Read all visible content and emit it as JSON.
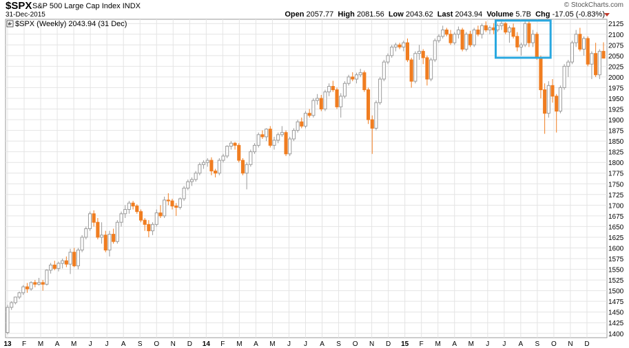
{
  "header": {
    "symbol": "$SPX",
    "name": "S&P 500 Large Cap Index",
    "exchange": "INDX",
    "date": "31-Dec-2015",
    "brand": "© StockCharts.com",
    "open_label": "Open",
    "open": "2057.77",
    "high_label": "High",
    "high": "2081.56",
    "low_label": "Low",
    "low": "2043.62",
    "last_label": "Last",
    "last": "2043.94",
    "volume_label": "Volume",
    "volume": "5.7B",
    "chg_label": "Chg",
    "chg": "-17.05 (-0.83%)"
  },
  "colors": {
    "up": "#9a9a9a",
    "down": "#f07d20",
    "highlight": "#29a8e0",
    "grid": "#e4e4e4"
  },
  "chart_data": {
    "type": "candlestick",
    "legend": "$SPX (Weekly) 2043.94 (31 Dec)",
    "ylim": [
      1390,
      2135
    ],
    "yticks": [
      1400,
      1425,
      1450,
      1475,
      1500,
      1525,
      1550,
      1575,
      1600,
      1625,
      1650,
      1675,
      1700,
      1725,
      1750,
      1775,
      1800,
      1825,
      1850,
      1875,
      1900,
      1925,
      1950,
      1975,
      2000,
      2025,
      2050,
      2075,
      2100,
      2125
    ],
    "x_labels": [
      "13",
      "F",
      "M",
      "A",
      "M",
      "J",
      "J",
      "A",
      "S",
      "O",
      "N",
      "D",
      "14",
      "F",
      "M",
      "A",
      "M",
      "J",
      "J",
      "A",
      "S",
      "O",
      "N",
      "D",
      "15",
      "F",
      "M",
      "A",
      "M",
      "J",
      "J",
      "A",
      "S",
      "O",
      "N",
      "D"
    ],
    "highlight_box": {
      "x_start": 125,
      "x_end": 138,
      "y_low": 2045,
      "y_high": 2132
    },
    "ohlc": [
      [
        1402,
        1467,
        1398,
        1461
      ],
      [
        1461,
        1475,
        1455,
        1472
      ],
      [
        1472,
        1486,
        1468,
        1485
      ],
      [
        1485,
        1498,
        1480,
        1495
      ],
      [
        1495,
        1513,
        1490,
        1509
      ],
      [
        1509,
        1518,
        1495,
        1504
      ],
      [
        1504,
        1522,
        1500,
        1519
      ],
      [
        1519,
        1525,
        1508,
        1515
      ],
      [
        1515,
        1530,
        1512,
        1519
      ],
      [
        1519,
        1525,
        1500,
        1515
      ],
      [
        1515,
        1550,
        1512,
        1548
      ],
      [
        1548,
        1565,
        1540,
        1560
      ],
      [
        1560,
        1570,
        1548,
        1552
      ],
      [
        1552,
        1568,
        1545,
        1564
      ],
      [
        1564,
        1575,
        1552,
        1570
      ],
      [
        1570,
        1580,
        1555,
        1562
      ],
      [
        1562,
        1598,
        1539,
        1590
      ],
      [
        1590,
        1600,
        1555,
        1558
      ],
      [
        1558,
        1600,
        1550,
        1595
      ],
      [
        1595,
        1630,
        1590,
        1625
      ],
      [
        1625,
        1650,
        1620,
        1645
      ],
      [
        1645,
        1685,
        1640,
        1680
      ],
      [
        1680,
        1688,
        1650,
        1660
      ],
      [
        1660,
        1670,
        1620,
        1625
      ],
      [
        1625,
        1660,
        1610,
        1630
      ],
      [
        1630,
        1640,
        1590,
        1595
      ],
      [
        1595,
        1640,
        1580,
        1632
      ],
      [
        1632,
        1645,
        1610,
        1615
      ],
      [
        1615,
        1665,
        1610,
        1660
      ],
      [
        1660,
        1685,
        1650,
        1680
      ],
      [
        1680,
        1700,
        1670,
        1690
      ],
      [
        1690,
        1710,
        1680,
        1705
      ],
      [
        1705,
        1710,
        1690,
        1698
      ],
      [
        1698,
        1702,
        1680,
        1685
      ],
      [
        1685,
        1690,
        1660,
        1665
      ],
      [
        1665,
        1670,
        1640,
        1655
      ],
      [
        1655,
        1665,
        1625,
        1640
      ],
      [
        1640,
        1660,
        1630,
        1655
      ],
      [
        1655,
        1690,
        1650,
        1682
      ],
      [
        1682,
        1700,
        1670,
        1675
      ],
      [
        1675,
        1720,
        1670,
        1712
      ],
      [
        1712,
        1728,
        1700,
        1710
      ],
      [
        1710,
        1715,
        1690,
        1698
      ],
      [
        1698,
        1705,
        1675,
        1695
      ],
      [
        1695,
        1718,
        1690,
        1715
      ],
      [
        1715,
        1745,
        1710,
        1740
      ],
      [
        1740,
        1760,
        1735,
        1755
      ],
      [
        1755,
        1765,
        1745,
        1760
      ],
      [
        1760,
        1780,
        1755,
        1775
      ],
      [
        1775,
        1800,
        1770,
        1795
      ],
      [
        1795,
        1805,
        1785,
        1800
      ],
      [
        1800,
        1810,
        1790,
        1805
      ],
      [
        1805,
        1812,
        1770,
        1780
      ],
      [
        1780,
        1785,
        1765,
        1775
      ],
      [
        1775,
        1810,
        1770,
        1805
      ],
      [
        1805,
        1820,
        1800,
        1815
      ],
      [
        1815,
        1840,
        1810,
        1838
      ],
      [
        1838,
        1850,
        1830,
        1845
      ],
      [
        1845,
        1848,
        1830,
        1840
      ],
      [
        1840,
        1845,
        1800,
        1805
      ],
      [
        1805,
        1810,
        1770,
        1775
      ],
      [
        1775,
        1800,
        1737,
        1795
      ],
      [
        1795,
        1830,
        1790,
        1825
      ],
      [
        1825,
        1845,
        1820,
        1840
      ],
      [
        1840,
        1870,
        1835,
        1865
      ],
      [
        1865,
        1875,
        1855,
        1860
      ],
      [
        1860,
        1880,
        1850,
        1878
      ],
      [
        1878,
        1885,
        1835,
        1840
      ],
      [
        1840,
        1860,
        1830,
        1852
      ],
      [
        1852,
        1870,
        1845,
        1865
      ],
      [
        1865,
        1885,
        1860,
        1870
      ],
      [
        1870,
        1875,
        1815,
        1820
      ],
      [
        1820,
        1860,
        1815,
        1855
      ],
      [
        1855,
        1880,
        1850,
        1875
      ],
      [
        1875,
        1900,
        1870,
        1895
      ],
      [
        1895,
        1905,
        1880,
        1885
      ],
      [
        1885,
        1920,
        1880,
        1915
      ],
      [
        1915,
        1925,
        1905,
        1910
      ],
      [
        1910,
        1950,
        1905,
        1945
      ],
      [
        1945,
        1960,
        1935,
        1950
      ],
      [
        1950,
        1958,
        1920,
        1925
      ],
      [
        1925,
        1970,
        1920,
        1965
      ],
      [
        1965,
        1985,
        1955,
        1978
      ],
      [
        1978,
        1991,
        1965,
        1970
      ],
      [
        1970,
        1975,
        1925,
        1930
      ],
      [
        1930,
        1962,
        1905,
        1955
      ],
      [
        1955,
        1990,
        1950,
        1985
      ],
      [
        1985,
        2005,
        1980,
        2000
      ],
      [
        2000,
        2011,
        1990,
        1995
      ],
      [
        1995,
        2010,
        1985,
        2005
      ],
      [
        2005,
        2019,
        2000,
        2010
      ],
      [
        2010,
        2015,
        1965,
        1970
      ],
      [
        1970,
        1975,
        1890,
        1900
      ],
      [
        1900,
        1910,
        1820,
        1880
      ],
      [
        1880,
        1945,
        1875,
        1940
      ],
      [
        1940,
        2000,
        1935,
        1995
      ],
      [
        1995,
        2040,
        1990,
        2035
      ],
      [
        2035,
        2055,
        2030,
        2050
      ],
      [
        2050,
        2075,
        2045,
        2070
      ],
      [
        2070,
        2080,
        2060,
        2075
      ],
      [
        2075,
        2080,
        2065,
        2070
      ],
      [
        2070,
        2085,
        2060,
        2080
      ],
      [
        2080,
        2090,
        2035,
        2040
      ],
      [
        2040,
        2045,
        1975,
        1990
      ],
      [
        1990,
        2060,
        1985,
        2055
      ],
      [
        2055,
        2075,
        2040,
        2060
      ],
      [
        2060,
        2065,
        2030,
        2045
      ],
      [
        2045,
        2050,
        1980,
        1995
      ],
      [
        1995,
        2045,
        1990,
        2040
      ],
      [
        2040,
        2090,
        2035,
        2085
      ],
      [
        2085,
        2100,
        2080,
        2095
      ],
      [
        2095,
        2120,
        2090,
        2110
      ],
      [
        2110,
        2115,
        2095,
        2100
      ],
      [
        2100,
        2110,
        2075,
        2080
      ],
      [
        2080,
        2105,
        2075,
        2100
      ],
      [
        2100,
        2118,
        2090,
        2110
      ],
      [
        2110,
        2115,
        2060,
        2065
      ],
      [
        2065,
        2105,
        2060,
        2100
      ],
      [
        2100,
        2108,
        2070,
        2075
      ],
      [
        2075,
        2115,
        2070,
        2110
      ],
      [
        2110,
        2120,
        2095,
        2100
      ],
      [
        2100,
        2125,
        2090,
        2120
      ],
      [
        2120,
        2130,
        2105,
        2110
      ],
      [
        2110,
        2120,
        2100,
        2115
      ],
      [
        2115,
        2126,
        2100,
        2110
      ],
      [
        2110,
        2125,
        2105,
        2120
      ],
      [
        2120,
        2130,
        2110,
        2125
      ],
      [
        2125,
        2128,
        2100,
        2105
      ],
      [
        2105,
        2120,
        2080,
        2115
      ],
      [
        2115,
        2125,
        2090,
        2095
      ],
      [
        2095,
        2105,
        2060,
        2070
      ],
      [
        2070,
        2080,
        2050,
        2075
      ],
      [
        2075,
        2130,
        2070,
        2125
      ],
      [
        2125,
        2130,
        2070,
        2080
      ],
      [
        2080,
        2110,
        2070,
        2100
      ],
      [
        2100,
        2105,
        2040,
        2045
      ],
      [
        2045,
        2050,
        1950,
        1970
      ],
      [
        1970,
        1985,
        1867,
        1915
      ],
      [
        1915,
        1990,
        1905,
        1980
      ],
      [
        1980,
        1995,
        1940,
        1955
      ],
      [
        1955,
        1960,
        1870,
        1920
      ],
      [
        1920,
        1980,
        1915,
        1975
      ],
      [
        1975,
        2030,
        1970,
        2025
      ],
      [
        2025,
        2040,
        2000,
        2035
      ],
      [
        2035,
        2085,
        2030,
        2080
      ],
      [
        2080,
        2110,
        2070,
        2100
      ],
      [
        2100,
        2115,
        2060,
        2065
      ],
      [
        2065,
        2095,
        2050,
        2090
      ],
      [
        2090,
        2095,
        2025,
        2030
      ],
      [
        2030,
        2060,
        1995,
        2055
      ],
      [
        2055,
        2080,
        2000,
        2005
      ],
      [
        2005,
        2065,
        1995,
        2060
      ],
      [
        2060,
        2081,
        2043,
        2044
      ]
    ]
  }
}
